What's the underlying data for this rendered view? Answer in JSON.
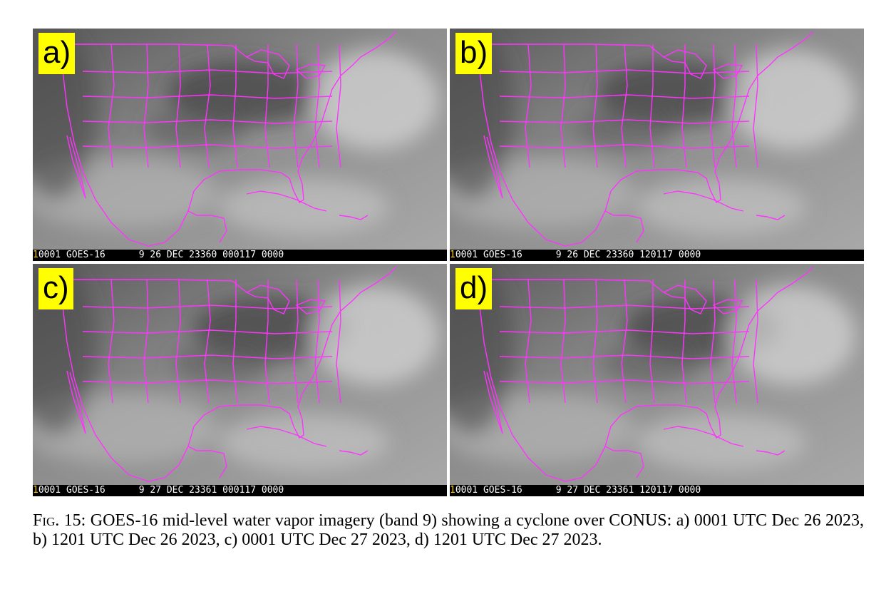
{
  "colors": {
    "coastline": "#ff33ff",
    "label_bg": "#ffff00",
    "status_bg": "#000000",
    "status_num": "#ffcc00"
  },
  "panels": [
    {
      "label": "a)",
      "status": {
        "num": "1",
        "text": "0001 GOES-16      9 26 DEC 23360 000117 0000"
      }
    },
    {
      "label": "b)",
      "status": {
        "num": "1",
        "text": "0001 GOES-16      9 26 DEC 23360 120117 0000"
      }
    },
    {
      "label": "c)",
      "status": {
        "num": "1",
        "text": "0001 GOES-16      9 27 DEC 23361 000117 0000"
      }
    },
    {
      "label": "d)",
      "status": {
        "num": "1",
        "text": "0001 GOES-16      9 27 DEC 23361 120117 0000"
      }
    }
  ],
  "caption": {
    "fig_label": "Fig. 15:",
    "text": "GOES-16 mid-level water vapor imagery (band 9) showing a cyclone over CONUS: a) 0001 UTC Dec 26 2023, b) 1201 UTC Dec 26 2023, c) 0001 UTC Dec 27 2023, d) 1201 UTC Dec 27 2023."
  }
}
